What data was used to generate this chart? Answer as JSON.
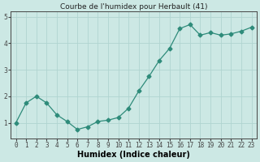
{
  "title": "Courbe de l'humidex pour Herbault (41)",
  "xlabel": "Humidex (Indice chaleur)",
  "x_values": [
    0,
    1,
    2,
    3,
    4,
    5,
    6,
    7,
    8,
    9,
    10,
    11,
    12,
    13,
    14,
    15,
    16,
    17,
    18,
    19,
    20,
    21,
    22,
    23
  ],
  "y_values": [
    1.0,
    1.75,
    2.0,
    1.75,
    1.3,
    1.05,
    0.75,
    0.85,
    1.05,
    1.1,
    1.2,
    1.55,
    2.2,
    2.75,
    3.35,
    3.8,
    4.55,
    4.7,
    4.3,
    4.4,
    4.3,
    4.35,
    4.45,
    4.6
  ],
  "line_color": "#2e8b7a",
  "marker": "D",
  "marker_size": 2.5,
  "bg_color": "#cce8e4",
  "grid_color": "#b0d4d0",
  "axis_color": "#444444",
  "ylim": [
    0.4,
    5.2
  ],
  "xlim": [
    -0.5,
    23.5
  ],
  "yticks": [
    1,
    2,
    3,
    4,
    5
  ],
  "title_fontsize": 6.5,
  "label_fontsize": 7,
  "tick_fontsize": 5.5
}
